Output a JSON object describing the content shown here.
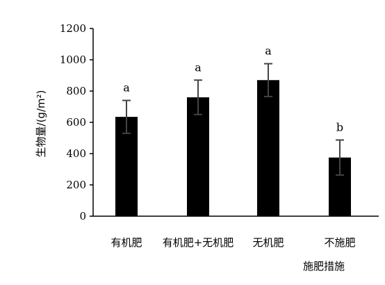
{
  "chart_data": {
    "type": "bar",
    "xlabel": "施肥措施",
    "ylabel": "生物量/(g/m²)",
    "ylim": [
      0,
      1200
    ],
    "yticks": [
      0,
      200,
      400,
      600,
      800,
      1000,
      1200
    ],
    "grid": false,
    "categories": [
      "有机肥",
      "有机肥+无机肥",
      "无机肥",
      "不施肥"
    ],
    "values": [
      635,
      760,
      870,
      375
    ],
    "errors": [
      105,
      110,
      105,
      112
    ],
    "significance": [
      "a",
      "a",
      "a",
      "b"
    ],
    "bar_color": "#000000",
    "error_color": "#444444"
  }
}
